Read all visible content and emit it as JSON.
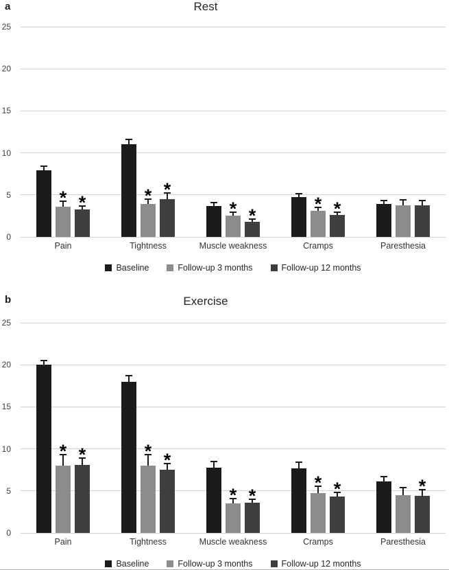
{
  "figure": {
    "background": "#ffffff",
    "bottom_rule_color": "#b9b9b9"
  },
  "colors": {
    "grid": "#d2d2d2",
    "axis_text": "#3d3d3d",
    "error_bar": "#1a1a1a",
    "sig_marker": "#000000"
  },
  "sig_symbol": "*",
  "chart_data": [
    {
      "type": "bar",
      "panel_label": "a",
      "title": "Rest",
      "categories": [
        "Pain",
        "Tightness",
        "Muscle weakness",
        "Cramps",
        "Paresthesia"
      ],
      "y_ticks": [
        0,
        5,
        10,
        15,
        20,
        25
      ],
      "ylim": [
        0,
        25
      ],
      "grid": true,
      "legend_position": "bottom",
      "series": [
        {
          "name": "Baseline",
          "color": "#1b1b1b",
          "values": [
            7.9,
            11.0,
            3.7,
            4.7,
            3.9
          ],
          "errors": [
            0.6,
            0.7,
            0.5,
            0.5,
            0.5
          ],
          "significant": [
            false,
            false,
            false,
            false,
            false
          ]
        },
        {
          "name": "Follow-up 3 months",
          "color": "#8c8c8c",
          "values": [
            3.6,
            3.9,
            2.5,
            3.1,
            3.8
          ],
          "errors": [
            0.7,
            0.7,
            0.5,
            0.5,
            0.7
          ],
          "significant": [
            true,
            true,
            true,
            true,
            false
          ]
        },
        {
          "name": "Follow-up 12 months",
          "color": "#3f3f3f",
          "values": [
            3.3,
            4.5,
            1.8,
            2.6,
            3.8
          ],
          "errors": [
            0.5,
            0.8,
            0.4,
            0.4,
            0.6
          ],
          "significant": [
            true,
            true,
            true,
            true,
            false
          ]
        }
      ]
    },
    {
      "type": "bar",
      "panel_label": "b",
      "title": "Exercise",
      "categories": [
        "Pain",
        "Tightness",
        "Muscle weakness",
        "Cramps",
        "Paresthesia"
      ],
      "y_ticks": [
        0,
        5,
        10,
        15,
        20,
        25
      ],
      "ylim": [
        0,
        25
      ],
      "grid": true,
      "legend_position": "bottom",
      "series": [
        {
          "name": "Baseline",
          "color": "#1b1b1b",
          "values": [
            20.0,
            18.0,
            7.8,
            7.7,
            6.1
          ],
          "errors": [
            0.6,
            0.8,
            0.8,
            0.8,
            0.7
          ],
          "significant": [
            false,
            false,
            false,
            false,
            false
          ]
        },
        {
          "name": "Follow-up 3 months",
          "color": "#8c8c8c",
          "values": [
            8.0,
            8.0,
            3.5,
            4.7,
            4.5
          ],
          "errors": [
            1.4,
            1.4,
            0.7,
            0.9,
            1.0
          ],
          "significant": [
            true,
            true,
            true,
            true,
            false
          ]
        },
        {
          "name": "Follow-up 12 months",
          "color": "#3f3f3f",
          "values": [
            8.1,
            7.5,
            3.6,
            4.3,
            4.4
          ],
          "errors": [
            0.9,
            0.8,
            0.5,
            0.6,
            0.8
          ],
          "significant": [
            true,
            true,
            true,
            true,
            true
          ]
        }
      ]
    }
  ]
}
